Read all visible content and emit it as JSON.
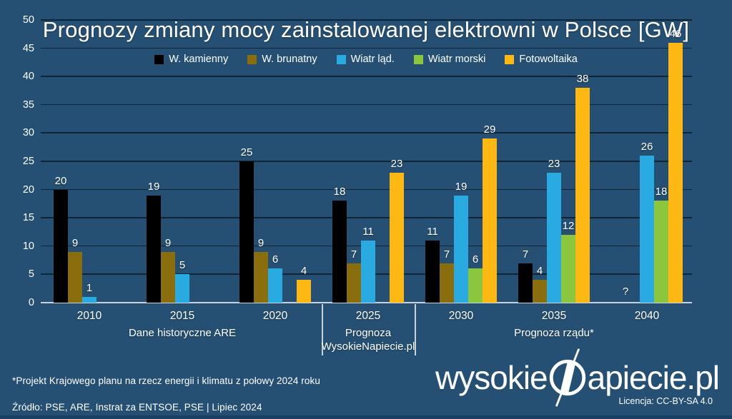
{
  "chart_data": {
    "type": "bar",
    "title": "Prognozy zmiany mocy zainstalowanej elektrowni w Polsce [GW]",
    "categories": [
      "2010",
      "2015",
      "2020",
      "2025",
      "2030",
      "2035",
      "2040"
    ],
    "series": [
      {
        "name": "W. kamienny",
        "color": "#000000",
        "values": [
          20,
          19,
          25,
          18,
          11,
          7,
          "?"
        ]
      },
      {
        "name": "W. brunatny",
        "color": "#8a6d0d",
        "values": [
          9,
          9,
          9,
          7,
          7,
          4,
          null
        ]
      },
      {
        "name": "Wiatr ląd.",
        "color": "#29abe2",
        "values": [
          1,
          5,
          6,
          11,
          19,
          23,
          26
        ]
      },
      {
        "name": "Wiatr morski",
        "color": "#8cc63e",
        "values": [
          null,
          null,
          null,
          null,
          6,
          12,
          18
        ]
      },
      {
        "name": "Fotowoltaika",
        "color": "#fdb813",
        "values": [
          null,
          null,
          4,
          23,
          29,
          38,
          46
        ]
      }
    ],
    "xlabel": "",
    "ylabel": "",
    "ylim": [
      0,
      50
    ],
    "ytick_step": 5,
    "grid": true,
    "legend_position": "top",
    "zones": [
      {
        "lines": [
          "Dane historyczne ARE"
        ],
        "from": 0,
        "to": 2
      },
      {
        "lines": [
          "Prognoza",
          "WysokieNapiecie.pl"
        ],
        "from": 3,
        "to": 3
      },
      {
        "lines": [
          "Prognoza rządu*"
        ],
        "from": 4,
        "to": 6
      }
    ]
  },
  "footer": {
    "footnote": "*Projekt Krajowego planu na rzecz energii i klimatu z połowy 2024 roku",
    "source": "Źródło: PSE, ARE, Instrat za ENTSOE, PSE |  Lipiec 2024",
    "license": "Licencja: CC-BY-SA 4.0"
  },
  "logo": {
    "prefix": "wysokie",
    "suffix": "apiecie.pl"
  },
  "colors": {
    "background": "#265073",
    "gridline": "#0f2435",
    "baseline": "#c9d2da",
    "text": "#ffffff"
  }
}
